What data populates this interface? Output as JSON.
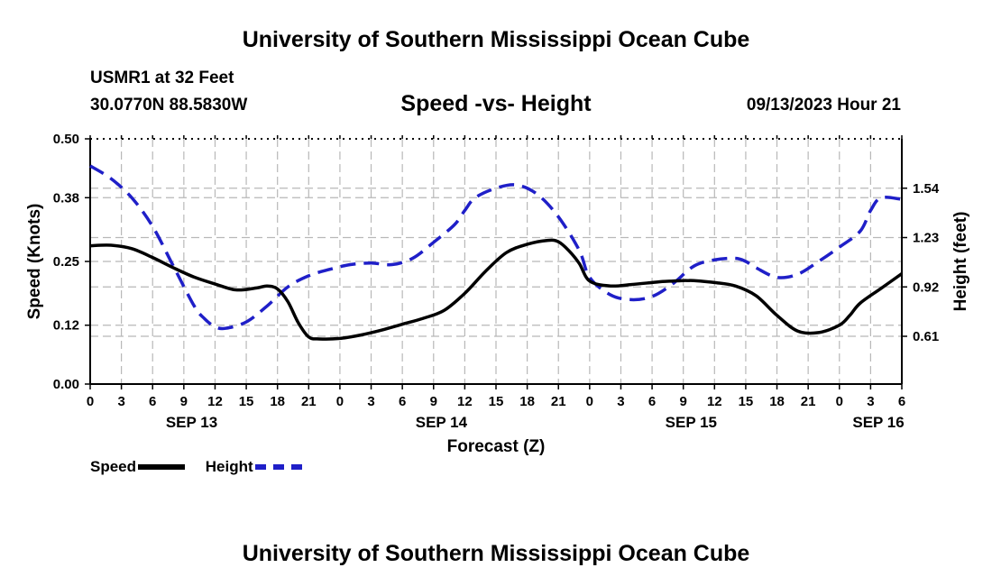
{
  "page": {
    "title": "University of Southern Mississippi Ocean Cube",
    "footer_title": "University of Southern Mississippi Ocean Cube",
    "station": "USMR1 at 32 Feet",
    "coords": "30.0770N  88.5830W",
    "datetime": "09/13/2023 Hour 21"
  },
  "colors": {
    "speed": "#000000",
    "height": "#1f1fc8",
    "grid": "#b8b8b8"
  },
  "chart_data": {
    "type": "line",
    "title": "Speed -vs- Height",
    "xlabel": "Forecast (Z)",
    "ylabel": "Speed (Knots)",
    "y2label": "Height (feet)",
    "x_unit": "hours since SEP 13 00Z",
    "xlim": [
      0,
      78
    ],
    "ylim": [
      0,
      0.5
    ],
    "y2lim": [
      0.31,
      1.85
    ],
    "x_ticks": [
      0,
      3,
      6,
      9,
      12,
      15,
      18,
      21,
      24,
      27,
      30,
      33,
      36,
      39,
      42,
      45,
      48,
      51,
      54,
      57,
      60,
      63,
      66,
      69,
      72,
      75,
      78
    ],
    "x_tick_labels": [
      "0",
      "3",
      "6",
      "9",
      "12",
      "15",
      "18",
      "21",
      "0",
      "3",
      "6",
      "9",
      "12",
      "15",
      "18",
      "21",
      "0",
      "3",
      "6",
      "9",
      "12",
      "15",
      "18",
      "21",
      "0",
      "3",
      "6"
    ],
    "date_labels": [
      {
        "x": 9.75,
        "label": "SEP 13"
      },
      {
        "x": 33.75,
        "label": "SEP 14"
      },
      {
        "x": 57.75,
        "label": "SEP 15"
      },
      {
        "x": 75.75,
        "label": "SEP 16"
      }
    ],
    "y_ticks": [
      0,
      0.12,
      0.25,
      0.38,
      0.5
    ],
    "y_tick_labels": [
      "0.00",
      "0.12",
      "0.25",
      "0.38",
      "0.50"
    ],
    "y2_ticks": [
      0.61,
      0.92,
      1.23,
      1.54
    ],
    "y2_tick_labels": [
      "0.61",
      "0.92",
      "1.23",
      "1.54"
    ],
    "legend": [
      {
        "name": "Speed",
        "style": "solid"
      },
      {
        "name": "Height",
        "style": "dashed"
      }
    ],
    "series": [
      {
        "name": "Speed",
        "axis": "left",
        "x": [
          0,
          2,
          4,
          6,
          8,
          10,
          12,
          14,
          16,
          17,
          18,
          19,
          20,
          21,
          22,
          24,
          26,
          28,
          30,
          32,
          34,
          36,
          38,
          40,
          42,
          44,
          45,
          46,
          47,
          48,
          50,
          52,
          54,
          55,
          56,
          57,
          57.5,
          58,
          60,
          62,
          64,
          66,
          68,
          70,
          72,
          73,
          74,
          76,
          78
        ],
        "values": [
          0.282,
          0.283,
          0.276,
          0.258,
          0.237,
          0.218,
          0.204,
          0.192,
          0.196,
          0.2,
          0.194,
          0.168,
          0.125,
          0.096,
          0.092,
          0.093,
          0.1,
          0.11,
          0.122,
          0.134,
          0.15,
          0.185,
          0.23,
          0.268,
          0.285,
          0.293,
          0.29,
          0.272,
          0.246,
          0.21,
          0.2,
          0.203,
          0.207,
          0.209,
          0.21,
          0.211,
          0.211,
          0.211,
          0.207,
          0.2,
          0.18,
          0.14,
          0.108,
          0.105,
          0.12,
          0.14,
          0.165,
          0.195,
          0.225
        ]
      },
      {
        "name": "Height",
        "axis": "right",
        "x": [
          0,
          2,
          4,
          6,
          8,
          10,
          11,
          12,
          13,
          15,
          17,
          19,
          21,
          23,
          25,
          27,
          29,
          31,
          33,
          35,
          36,
          37,
          39,
          41,
          43,
          45,
          47,
          48,
          50,
          52,
          54,
          56,
          58,
          60,
          62,
          63,
          64,
          66,
          68,
          70,
          72,
          74,
          75,
          76,
          78
        ],
        "values": [
          1.68,
          1.6,
          1.48,
          1.3,
          1.05,
          0.8,
          0.72,
          0.67,
          0.66,
          0.7,
          0.8,
          0.92,
          0.99,
          1.03,
          1.06,
          1.07,
          1.06,
          1.1,
          1.2,
          1.31,
          1.4,
          1.48,
          1.54,
          1.56,
          1.5,
          1.36,
          1.15,
          0.98,
          0.87,
          0.84,
          0.86,
          0.94,
          1.05,
          1.09,
          1.1,
          1.08,
          1.04,
          0.98,
          1.0,
          1.08,
          1.17,
          1.27,
          1.4,
          1.48,
          1.47
        ]
      }
    ]
  }
}
